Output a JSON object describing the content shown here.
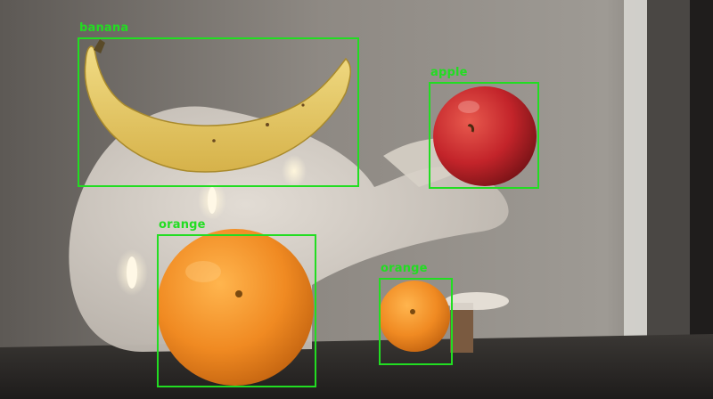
{
  "image": {
    "detections": [
      {
        "label": "banana"
      },
      {
        "label": "apple"
      },
      {
        "label": "orange"
      },
      {
        "label": "orange"
      }
    ],
    "colors": {
      "box": "#22dd22",
      "wall": "#8a8580",
      "floor": "#2e2c2a",
      "banana": "#e9cf6a",
      "apple": "#c8262c",
      "orange": "#f0902a"
    }
  }
}
